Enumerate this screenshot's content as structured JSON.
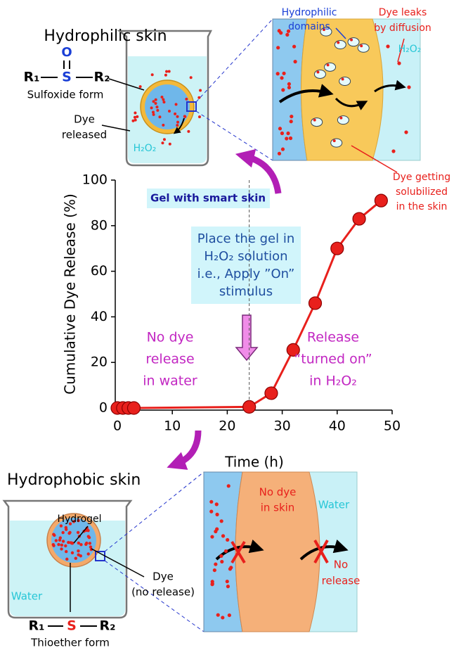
{
  "chart_data": {
    "type": "line",
    "xlabel": "Time (h)",
    "ylabel": "Cumulative Dye Release (%)",
    "x": [
      0,
      1,
      2,
      3,
      24,
      28,
      32,
      36,
      40,
      44,
      48
    ],
    "values": [
      0,
      0,
      0,
      0,
      0.5,
      6.5,
      25.5,
      46,
      70,
      83,
      91
    ],
    "color": "#e8201c",
    "xlim": [
      0,
      50
    ],
    "ylim": [
      0,
      100
    ],
    "xticks": [
      0,
      10,
      20,
      30,
      40,
      50
    ],
    "yticks": [
      0,
      20,
      40,
      60,
      80,
      100
    ],
    "stimulus_time": 24,
    "annotations": {
      "gel_label": "Gel with smart skin",
      "stimulus": [
        "Place the gel in",
        "H₂O₂ solution",
        "i.e., Apply ”On”",
        "stimulus"
      ],
      "no_release": [
        "No dye",
        "release",
        "in water"
      ],
      "release": [
        "Release",
        "“turned on”",
        "in H₂O₂"
      ]
    }
  },
  "top_diagram": {
    "title": "Hydrophilic skin",
    "oxygen": "O",
    "r1": "R₁",
    "sulfur": "S",
    "r2": "R₂",
    "form": "Sulfoxide form",
    "dye_released": [
      "Dye",
      "released"
    ],
    "medium": "H₂O₂",
    "domains": [
      "Hydrophilic",
      "domains"
    ],
    "leaks": [
      "Dye leaks",
      "by diffusion"
    ],
    "zoom_medium": "H₂O₂",
    "solubilized": [
      "Dye getting",
      "solubilized",
      "in the skin"
    ]
  },
  "bottom_diagram": {
    "title": "Hydrophobic skin",
    "hydrogel": "Hydrogel",
    "medium": "Water",
    "dye": [
      "Dye",
      "(no release)"
    ],
    "r1": "R₁",
    "sulfur": "S",
    "r2": "R₂",
    "form": "Thioether form",
    "no_dye": [
      "No dye",
      "in skin"
    ],
    "zoom_medium": "Water",
    "no_release": [
      "No",
      "release"
    ]
  }
}
